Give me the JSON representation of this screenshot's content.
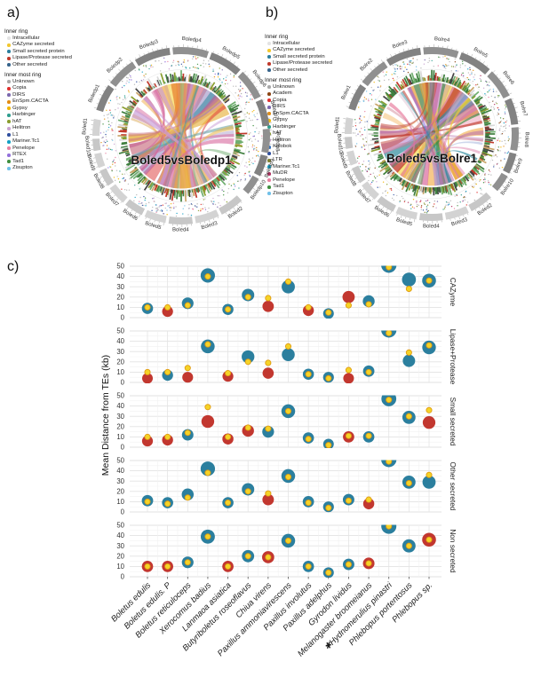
{
  "page": {
    "panel_a_letter": "a)",
    "panel_b_letter": "b)",
    "panel_c_letter": "c)"
  },
  "circos_a": {
    "title": "Boled5vsBoledp1",
    "legend_inner": {
      "title": "Inner ring",
      "items": [
        {
          "label": "Intracellular",
          "color": "#e3e3e3"
        },
        {
          "label": "CAZyme secreted",
          "color": "#f2c72e"
        },
        {
          "label": "Small secreted protein",
          "color": "#2b7f9e"
        },
        {
          "label": "Lipase/Protease secreted",
          "color": "#c0392b"
        },
        {
          "label": "Other secreted",
          "color": "#36648b"
        }
      ]
    },
    "legend_innermost": {
      "title": "Inner most ring",
      "items": [
        {
          "label": "Unknown",
          "color": "#a8a8a8"
        },
        {
          "label": "Copia",
          "color": "#e0302e"
        },
        {
          "label": "DIRS",
          "color": "#7b68ae"
        },
        {
          "label": "EnSpm.CACTA",
          "color": "#e38d13"
        },
        {
          "label": "Gypsy",
          "color": "#f2b705"
        },
        {
          "label": "Harbinger",
          "color": "#2e9e8e"
        },
        {
          "label": "hAT",
          "color": "#8a9e2e"
        },
        {
          "label": "Helitron",
          "color": "#caa3d0"
        },
        {
          "label": "L1",
          "color": "#2f4f9f"
        },
        {
          "label": "Mariner.Tc1",
          "color": "#13a0c4"
        },
        {
          "label": "Penelope",
          "color": "#e87fa0"
        },
        {
          "label": "RTEX",
          "color": "#9370db"
        },
        {
          "label": "Tad1",
          "color": "#3f8f3f"
        },
        {
          "label": "Zisupton",
          "color": "#70c0e8"
        }
      ]
    },
    "segments_dark": [
      "Boledp1",
      "Boledp2",
      "Boledp3",
      "Boledp4",
      "Boledp5",
      "Boledp6",
      "Boledp7",
      "Boledp8",
      "Boledp9",
      "Boledp10"
    ],
    "segments_light": [
      "Boled2",
      "Boled3",
      "Boled4",
      "Boled5",
      "Boled6",
      "Boled7",
      "Boled8",
      "Boled9",
      "Boled10",
      "Boled1"
    ],
    "chord_colors": [
      "#f0a232",
      "#f2cf2e",
      "#e87f2e",
      "#d96c9f",
      "#b86fae",
      "#e05252",
      "#9b8ec4",
      "#2e8b9e",
      "#cc7788",
      "#e8b84d",
      "#caa0d8",
      "#8fbf8f",
      "#c2578f",
      "#5f9ea0",
      "#d8a348"
    ]
  },
  "circos_b": {
    "title": "Boled5vsBolre1",
    "legend_inner": {
      "title": "Inner ring",
      "items": [
        {
          "label": "Intracellular",
          "color": "#e3e3e3"
        },
        {
          "label": "CAZyme secreted",
          "color": "#f2c72e"
        },
        {
          "label": "Small secreted protein",
          "color": "#2b7f9e"
        },
        {
          "label": "Lipase/Protease secreted",
          "color": "#c0392b"
        },
        {
          "label": "Other secreted",
          "color": "#36648b"
        }
      ]
    },
    "legend_innermost": {
      "title": "Inner most ring",
      "items": [
        {
          "label": "Unknown",
          "color": "#a8a8a8"
        },
        {
          "label": "Academ",
          "color": "#8b4513"
        },
        {
          "label": "Copia",
          "color": "#e0302e"
        },
        {
          "label": "DIRS",
          "color": "#7b68ae"
        },
        {
          "label": "EnSpm.CACTA",
          "color": "#e38d13"
        },
        {
          "label": "Gypsy",
          "color": "#f2b705"
        },
        {
          "label": "Harbinger",
          "color": "#2e9e8e"
        },
        {
          "label": "hAT",
          "color": "#8a9e2e"
        },
        {
          "label": "Helitron",
          "color": "#caa3d0"
        },
        {
          "label": "Kolobok",
          "color": "#2e6fbf"
        },
        {
          "label": "L1",
          "color": "#2f4f9f"
        },
        {
          "label": "LTR",
          "color": "#7f7f2e"
        },
        {
          "label": "Mariner.Tc1",
          "color": "#13a0c4"
        },
        {
          "label": "MuDR",
          "color": "#b03060"
        },
        {
          "label": "Penelope",
          "color": "#e87fa0"
        },
        {
          "label": "Tad1",
          "color": "#3f8f3f"
        },
        {
          "label": "Zisupton",
          "color": "#70c0e8"
        }
      ]
    },
    "segments_dark": [
      "Bolre1",
      "Bolre2",
      "Bolre3",
      "Bolre4",
      "Bolre5",
      "Bolre6",
      "Bolre7",
      "Bolre8",
      "Bolre9",
      "Bolre10"
    ],
    "segments_light": [
      "Boled2",
      "Boled3",
      "Boled4",
      "Boled5",
      "Boled6",
      "Boled7",
      "Boled8",
      "Boled9",
      "Boled10",
      "Boled1"
    ],
    "chord_colors": [
      "#e8a33d",
      "#1f9080",
      "#f0a232",
      "#d96c9f",
      "#b86fae",
      "#f2cf2e",
      "#c0392b",
      "#2e8b9e",
      "#caa0d8",
      "#cc7788",
      "#8a9fd1",
      "#e87fa0",
      "#3f8f3f",
      "#d8b4c8",
      "#9370db"
    ]
  },
  "chart_data": {
    "type": "scatter",
    "title": "",
    "ylabel": "Mean Distance from TEs (kb)",
    "xlabel": "",
    "ylim": [
      0,
      50
    ],
    "yticks": [
      0,
      10,
      20,
      30,
      40,
      50
    ],
    "grid": "on",
    "legend_position": "none",
    "colors": {
      "teal": "#2b7f9e",
      "red": "#c2372f",
      "dot_fill": "#f5d327",
      "dot_stroke": "#e09b12"
    },
    "species": [
      "Boletus edulis",
      "Boletus edulis. P",
      "Boletus reticuloceps",
      "Xerocomus badius",
      "Lanmaoa asiatica",
      "Butyriboletus roseoflavus",
      "Chiua virens",
      "Paxillus ammoniavirescens",
      "Paxillus involutus",
      "Paxillus adelphus",
      "Gyrodon lividus",
      "Melanogaster broomeianus",
      "✱Hydnomerulius pinastri",
      "Phlebopus portentosus",
      "Phlebopus sp."
    ],
    "facets": [
      {
        "label": "CAZyme",
        "circle_values": [
          9,
          6,
          14,
          41,
          8,
          22,
          11,
          30,
          7,
          4,
          20,
          16,
          51,
          37,
          36
        ],
        "circle_colors": [
          "teal",
          "red",
          "teal",
          "teal",
          "teal",
          "teal",
          "red",
          "teal",
          "red",
          "teal",
          "red",
          "teal",
          "teal",
          "teal",
          "teal"
        ],
        "dot_values": [
          10,
          10,
          12,
          40,
          8,
          20,
          19,
          35,
          10,
          5,
          12,
          13,
          49,
          28,
          36
        ]
      },
      {
        "label": "Lipase+Protease",
        "circle_values": [
          4,
          7,
          5,
          35,
          6,
          25,
          9,
          27,
          8,
          5,
          4,
          11,
          51,
          21,
          34
        ],
        "circle_colors": [
          "red",
          "teal",
          "red",
          "teal",
          "red",
          "teal",
          "red",
          "teal",
          "teal",
          "teal",
          "red",
          "teal",
          "teal",
          "teal",
          "teal"
        ],
        "dot_values": [
          10,
          10,
          14,
          37,
          9,
          20,
          19,
          35,
          8,
          4,
          12,
          10,
          48,
          29,
          36
        ]
      },
      {
        "label": "Small secreted",
        "circle_values": [
          6,
          7,
          12,
          25,
          8,
          16,
          15,
          35,
          9,
          3,
          10,
          10,
          47,
          29,
          24
        ],
        "circle_colors": [
          "red",
          "red",
          "teal",
          "red",
          "red",
          "red",
          "teal",
          "teal",
          "teal",
          "teal",
          "red",
          "teal",
          "teal",
          "teal",
          "red"
        ],
        "dot_values": [
          10,
          10,
          14,
          39,
          10,
          19,
          18,
          35,
          8,
          2,
          11,
          11,
          46,
          30,
          36
        ]
      },
      {
        "label": "Other secreted",
        "circle_values": [
          11,
          9,
          17,
          42,
          9,
          22,
          12,
          35,
          10,
          5,
          12,
          8,
          51,
          29,
          29
        ],
        "circle_colors": [
          "teal",
          "teal",
          "teal",
          "teal",
          "teal",
          "teal",
          "red",
          "teal",
          "teal",
          "teal",
          "teal",
          "red",
          "teal",
          "teal",
          "teal"
        ],
        "dot_values": [
          10,
          8,
          14,
          38,
          9,
          20,
          18,
          34,
          9,
          4,
          11,
          12,
          49,
          28,
          36
        ]
      },
      {
        "label": "Non secreted",
        "circle_values": [
          10,
          10,
          14,
          39,
          10,
          20,
          19,
          35,
          10,
          4,
          12,
          13,
          49,
          30,
          36
        ],
        "circle_colors": [
          "red",
          "red",
          "teal",
          "teal",
          "red",
          "teal",
          "red",
          "teal",
          "teal",
          "teal",
          "teal",
          "red",
          "teal",
          "teal",
          "red"
        ],
        "dot_values": [
          10,
          10,
          14,
          39,
          10,
          20,
          19,
          35,
          10,
          4,
          12,
          13,
          49,
          30,
          36
        ]
      }
    ]
  }
}
